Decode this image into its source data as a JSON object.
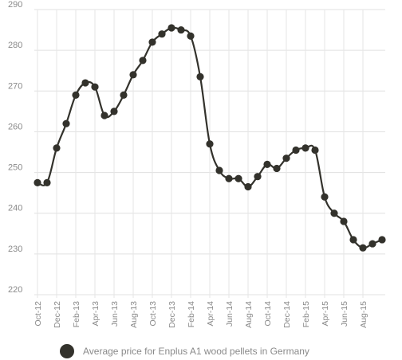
{
  "chart_data": {
    "type": "line",
    "title": "",
    "xlabel": "",
    "ylabel": "",
    "ylim": [
      220,
      290
    ],
    "yticks": [
      220,
      230,
      240,
      250,
      260,
      270,
      280,
      290
    ],
    "grid": true,
    "legend_placement": "bottom",
    "x": [
      "Oct-12",
      "Nov-12",
      "Dec-12",
      "Jan-13",
      "Feb-13",
      "Mar-13",
      "Apr-13",
      "May-13",
      "Jun-13",
      "Jul-13",
      "Aug-13",
      "Sep-13",
      "Oct-13",
      "Nov-13",
      "Dec-13",
      "Jan-14",
      "Feb-14",
      "Mar-14",
      "Apr-14",
      "May-14",
      "Jun-14",
      "Jul-14",
      "Aug-14",
      "Sep-14",
      "Oct-14",
      "Nov-14",
      "Dec-14",
      "Jan-15",
      "Feb-15",
      "Mar-15",
      "Apr-15",
      "May-15",
      "Jun-15",
      "Jul-15",
      "Aug-15",
      "Sep-15",
      "Oct-15"
    ],
    "xtick_labels": [
      "Oct-12",
      "Dec-12",
      "Feb-13",
      "Apr-13",
      "Jun-13",
      "Aug-13",
      "Oct-13",
      "Dec-13",
      "Feb-14",
      "Apr-14",
      "Jun-14",
      "Aug-14",
      "Oct-14",
      "Dec-14",
      "Feb-15",
      "Apr-15",
      "Jun-15",
      "Aug-15"
    ],
    "series": [
      {
        "name": "Average price for Enplus A1 wood pellets in Germany",
        "color": "#33322c",
        "values": [
          247.5,
          247.5,
          256,
          262,
          269,
          272,
          271,
          264,
          265,
          269,
          274,
          277.5,
          282,
          284,
          285.5,
          285,
          283.5,
          273.5,
          257,
          250.5,
          248.5,
          248.5,
          246.5,
          249,
          252,
          251,
          253.5,
          255.5,
          256,
          255.5,
          244,
          240,
          238,
          233.5,
          231.5,
          232.5,
          233.5
        ]
      }
    ]
  }
}
